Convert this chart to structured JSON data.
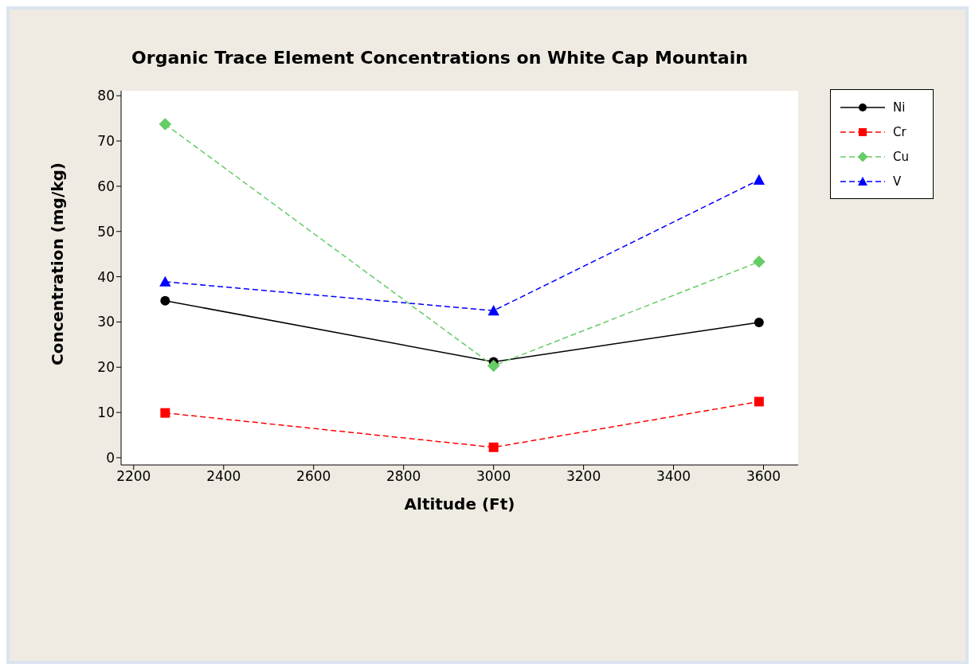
{
  "chart_data": {
    "type": "line",
    "title": "Organic Trace Element Concentrations on White Cap Mountain",
    "xlabel": "Altitude (Ft)",
    "ylabel": "Concentration (mg/kg)",
    "x": [
      2270,
      3000,
      3590
    ],
    "series": [
      {
        "name": "Ni",
        "color": "#000000",
        "values": [
          34.7,
          21.2,
          29.9
        ],
        "marker": "circle",
        "line_style": "solid"
      },
      {
        "name": "Cr",
        "color": "#ff0000",
        "values": [
          9.9,
          2.3,
          12.4
        ],
        "marker": "square",
        "line_style": "dashed"
      },
      {
        "name": "Cu",
        "color": "#66cc66",
        "values": [
          73.7,
          20.3,
          43.3
        ],
        "marker": "diamond",
        "line_style": "dashed"
      },
      {
        "name": "V",
        "color": "#0000ff",
        "values": [
          38.9,
          32.5,
          61.4
        ],
        "marker": "triangle",
        "line_style": "dashed"
      }
    ],
    "xlim": [
      2172,
      3677
    ],
    "xticks": [
      2200,
      2400,
      2600,
      2800,
      3000,
      3200,
      3400,
      3600
    ],
    "ylim": [
      -1.6,
      81.1
    ],
    "yticks": [
      0,
      10,
      20,
      30,
      40,
      50,
      60,
      70,
      80
    ],
    "grid": false,
    "legend": "top right"
  }
}
